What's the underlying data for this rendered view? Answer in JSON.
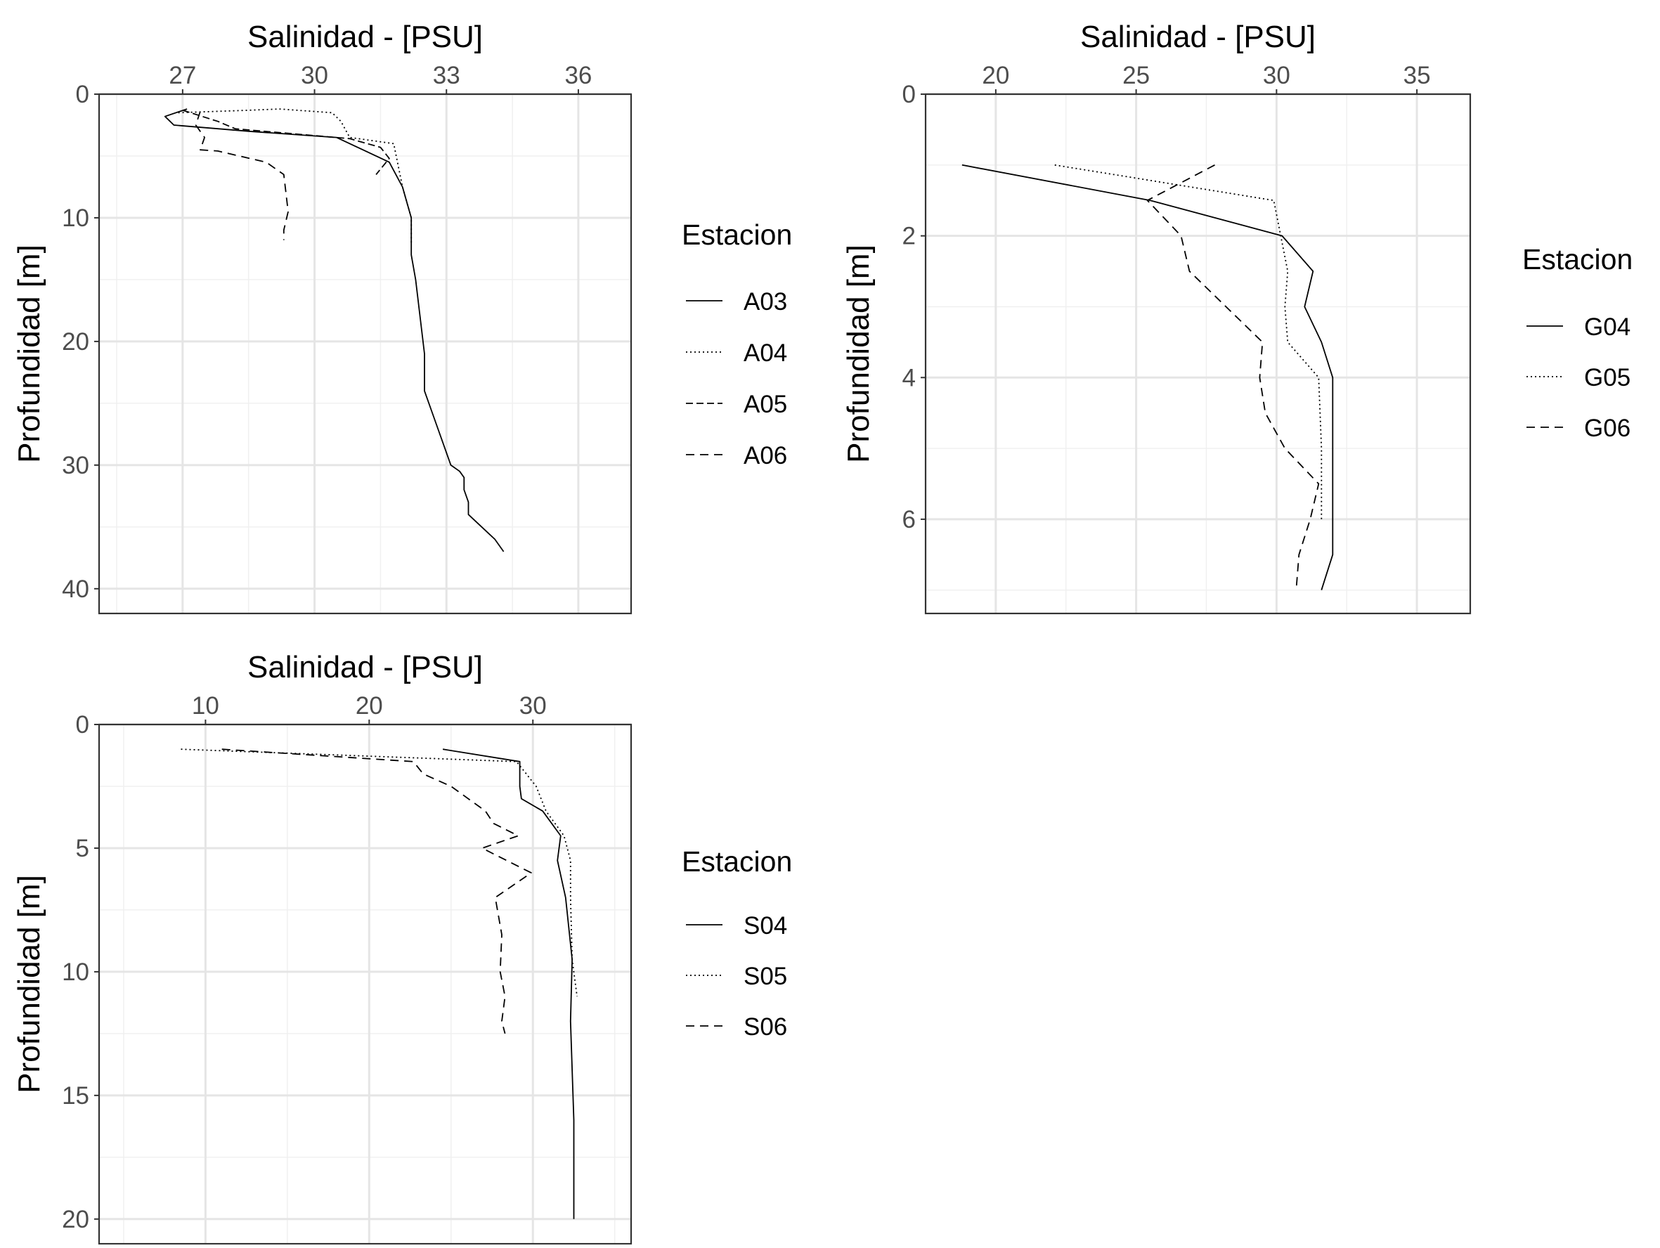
{
  "chart_data": [
    {
      "id": "A",
      "type": "line",
      "title": "",
      "xlabel": "Salinidad - [PSU]",
      "ylabel": "Profundidad [m]",
      "xlim": [
        25.1,
        37.2
      ],
      "ylim": [
        0,
        42
      ],
      "y_reversed": true,
      "x_axis_position": "top",
      "grid": true,
      "x_ticks": [
        27,
        30,
        33,
        36
      ],
      "y_ticks": [
        0,
        10,
        20,
        30,
        40
      ],
      "legend": {
        "title": "Estacion",
        "position": "right"
      },
      "series": [
        {
          "name": "A03",
          "linetype": "solid",
          "x": [
            27.1,
            26.6,
            26.8,
            28.5,
            30.5,
            31.7,
            32.0,
            32.2,
            32.2,
            32.3,
            32.4,
            32.5,
            32.5,
            32.7,
            32.9,
            33.1,
            33.3,
            33.4,
            33.4,
            33.5,
            33.5,
            33.8,
            34.1,
            34.3
          ],
          "y": [
            1.2,
            1.8,
            2.5,
            3.0,
            3.5,
            5.5,
            7.5,
            10,
            13,
            15,
            18,
            21,
            24,
            26,
            28,
            30,
            30.5,
            31,
            32,
            33,
            34,
            35,
            36,
            37
          ]
        },
        {
          "name": "A04",
          "linetype": "dotted",
          "x": [
            26.9,
            28.5,
            29.2,
            30.4,
            30.6,
            30.8,
            31.8,
            32.0,
            32.2,
            32.2
          ],
          "y": [
            1.5,
            1.3,
            1.2,
            1.5,
            2.2,
            3.5,
            4.0,
            7.5,
            10,
            12
          ]
        },
        {
          "name": "A05",
          "linetype": "densely-dashed",
          "x": [
            27.0,
            27.8,
            28.2,
            29.5,
            30.8,
            31.5,
            31.7,
            31.4
          ],
          "y": [
            1.3,
            2.2,
            2.8,
            3.2,
            3.6,
            4.3,
            5.2,
            6.5
          ]
        },
        {
          "name": "A06",
          "linetype": "dashed",
          "x": [
            27.4,
            27.3,
            27.5,
            27.4,
            27.8,
            28.9,
            29.3,
            29.4,
            29.3,
            29.3
          ],
          "y": [
            1.4,
            2.5,
            3.5,
            4.5,
            4.6,
            5.5,
            6.5,
            9.5,
            11,
            11.8
          ]
        }
      ]
    },
    {
      "id": "G",
      "type": "line",
      "title": "",
      "xlabel": "Salinidad - [PSU]",
      "ylabel": "Profundidad [m]",
      "xlim": [
        17.5,
        36.9
      ],
      "ylim": [
        0,
        7.33
      ],
      "y_reversed": true,
      "x_axis_position": "top",
      "grid": true,
      "x_ticks": [
        20,
        25,
        30,
        35
      ],
      "y_ticks": [
        0,
        2,
        4,
        6
      ],
      "legend": {
        "title": "Estacion",
        "position": "right"
      },
      "series": [
        {
          "name": "G04",
          "linetype": "solid",
          "x": [
            18.8,
            25.5,
            30.2,
            31.3,
            31.0,
            31.6,
            32.0,
            32.0,
            32.0,
            32.0,
            31.6
          ],
          "y": [
            1.0,
            1.5,
            2.0,
            2.5,
            3.0,
            3.5,
            4.0,
            5.0,
            6.0,
            6.5,
            7.0
          ]
        },
        {
          "name": "G05",
          "linetype": "dotted",
          "x": [
            22.1,
            29.9,
            30.4,
            30.3,
            30.4,
            31.5,
            31.6,
            31.6
          ],
          "y": [
            1.0,
            1.5,
            2.5,
            3.0,
            3.5,
            4.0,
            5.0,
            6.0
          ]
        },
        {
          "name": "G06",
          "linetype": "dashed",
          "x": [
            27.8,
            25.4,
            26.6,
            26.9,
            29.5,
            29.4,
            29.6,
            30.3,
            31.5,
            31.2,
            30.8,
            30.7
          ],
          "y": [
            1.0,
            1.5,
            2.0,
            2.5,
            3.5,
            4.0,
            4.5,
            5.0,
            5.5,
            6.0,
            6.5,
            7.0
          ]
        }
      ]
    },
    {
      "id": "S",
      "type": "line",
      "title": "",
      "xlabel": "Salinidad - [PSU]",
      "ylabel": "Profundidad [m]",
      "xlim": [
        3.5,
        36.0
      ],
      "ylim": [
        0,
        21
      ],
      "y_reversed": true,
      "x_axis_position": "top",
      "grid": true,
      "x_ticks": [
        10,
        20,
        30
      ],
      "y_ticks": [
        0,
        5,
        10,
        15,
        20
      ],
      "legend": {
        "title": "Estacion",
        "position": "right"
      },
      "series": [
        {
          "name": "S04",
          "linetype": "solid",
          "x": [
            24.5,
            29.2,
            29.2,
            29.3,
            30.6,
            31.7,
            31.5,
            32.0,
            32.4,
            32.3,
            32.5,
            32.5
          ],
          "y": [
            1.0,
            1.5,
            2.5,
            3.0,
            3.5,
            4.5,
            5.5,
            7.0,
            9.5,
            12.0,
            16.0,
            20.0
          ]
        },
        {
          "name": "S05",
          "linetype": "dotted",
          "x": [
            8.5,
            29.0,
            30.2,
            30.8,
            31.9,
            32.3,
            32.3,
            32.4,
            32.7
          ],
          "y": [
            1.0,
            1.5,
            2.5,
            3.5,
            4.5,
            5.5,
            7.0,
            9.5,
            11.0
          ]
        },
        {
          "name": "S06",
          "linetype": "dashed",
          "x": [
            11.0,
            22.7,
            23.3,
            25.0,
            27.1,
            27.6,
            29.1,
            26.9,
            29.9,
            27.7,
            28.1,
            28.0,
            28.3,
            28.1,
            28.3
          ],
          "y": [
            1.0,
            1.5,
            2.0,
            2.5,
            3.5,
            4.0,
            4.5,
            5.0,
            6.0,
            7.0,
            8.5,
            10.0,
            11.0,
            12.0,
            12.5
          ]
        }
      ]
    }
  ]
}
